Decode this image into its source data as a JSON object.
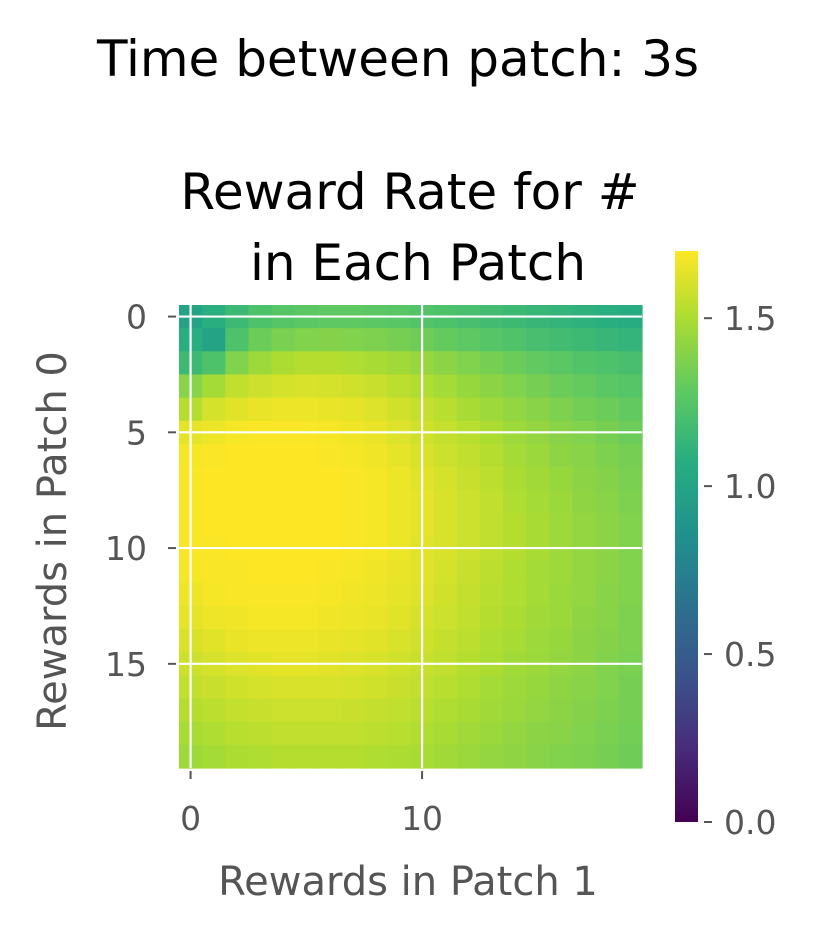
{
  "figure": {
    "suptitle": "Time between patch: 3s"
  },
  "chart_data": {
    "type": "heatmap",
    "title_lines": [
      "Reward Rate for #",
      "in Each Patch"
    ],
    "xlabel": "Rewards in Patch 1",
    "ylabel": "Rewards in Patch 0",
    "x_ticks": [
      0,
      10
    ],
    "y_ticks": [
      0,
      5,
      10,
      15
    ],
    "x_range": [
      0,
      19
    ],
    "y_range": [
      0,
      19
    ],
    "y_inverted": true,
    "grid": true,
    "colormap": "viridis",
    "colorbar": {
      "range": [
        0.0,
        1.7
      ],
      "ticks": [
        0.0,
        0.5,
        1.0,
        1.5
      ],
      "tick_labels": [
        "0.0",
        "0.5",
        "1.0",
        "1.5"
      ]
    },
    "values": [
      [
        1.0,
        1.08,
        1.16,
        1.22,
        1.25,
        1.27,
        1.28,
        1.28,
        1.27,
        1.26,
        1.24,
        1.22,
        1.2,
        1.18,
        1.16,
        1.14,
        1.12,
        1.1,
        1.08,
        1.06
      ],
      [
        1.08,
        1.0,
        1.22,
        1.32,
        1.36,
        1.38,
        1.39,
        1.38,
        1.37,
        1.35,
        1.33,
        1.3,
        1.28,
        1.25,
        1.23,
        1.2,
        1.18,
        1.16,
        1.14,
        1.12
      ],
      [
        1.16,
        1.22,
        1.38,
        1.46,
        1.5,
        1.52,
        1.52,
        1.51,
        1.49,
        1.47,
        1.44,
        1.41,
        1.38,
        1.35,
        1.32,
        1.29,
        1.27,
        1.24,
        1.22,
        1.2
      ],
      [
        1.4,
        1.48,
        1.55,
        1.58,
        1.6,
        1.61,
        1.6,
        1.59,
        1.57,
        1.54,
        1.51,
        1.48,
        1.44,
        1.41,
        1.38,
        1.35,
        1.32,
        1.3,
        1.27,
        1.25
      ],
      [
        1.52,
        1.6,
        1.63,
        1.65,
        1.66,
        1.66,
        1.65,
        1.64,
        1.62,
        1.59,
        1.56,
        1.53,
        1.49,
        1.46,
        1.43,
        1.4,
        1.37,
        1.34,
        1.32,
        1.29
      ],
      [
        1.64,
        1.66,
        1.68,
        1.69,
        1.69,
        1.69,
        1.68,
        1.67,
        1.65,
        1.62,
        1.59,
        1.56,
        1.53,
        1.5,
        1.46,
        1.43,
        1.4,
        1.38,
        1.35,
        1.32
      ],
      [
        1.68,
        1.69,
        1.7,
        1.7,
        1.7,
        1.7,
        1.69,
        1.68,
        1.67,
        1.64,
        1.61,
        1.58,
        1.55,
        1.52,
        1.48,
        1.45,
        1.42,
        1.4,
        1.37,
        1.35
      ],
      [
        1.69,
        1.7,
        1.7,
        1.7,
        1.7,
        1.7,
        1.7,
        1.69,
        1.68,
        1.66,
        1.63,
        1.6,
        1.57,
        1.54,
        1.5,
        1.47,
        1.44,
        1.41,
        1.39,
        1.36
      ],
      [
        1.69,
        1.7,
        1.7,
        1.7,
        1.7,
        1.7,
        1.7,
        1.69,
        1.68,
        1.66,
        1.64,
        1.61,
        1.58,
        1.55,
        1.51,
        1.48,
        1.45,
        1.42,
        1.4,
        1.37
      ],
      [
        1.69,
        1.7,
        1.7,
        1.7,
        1.7,
        1.7,
        1.7,
        1.69,
        1.68,
        1.66,
        1.64,
        1.61,
        1.58,
        1.55,
        1.52,
        1.49,
        1.46,
        1.43,
        1.41,
        1.38
      ],
      [
        1.69,
        1.69,
        1.7,
        1.7,
        1.7,
        1.7,
        1.7,
        1.69,
        1.68,
        1.66,
        1.63,
        1.61,
        1.58,
        1.55,
        1.52,
        1.49,
        1.46,
        1.43,
        1.41,
        1.38
      ],
      [
        1.68,
        1.69,
        1.69,
        1.7,
        1.7,
        1.7,
        1.69,
        1.68,
        1.67,
        1.65,
        1.63,
        1.6,
        1.57,
        1.54,
        1.51,
        1.48,
        1.46,
        1.43,
        1.41,
        1.38
      ],
      [
        1.66,
        1.68,
        1.69,
        1.69,
        1.69,
        1.69,
        1.68,
        1.67,
        1.66,
        1.64,
        1.62,
        1.59,
        1.56,
        1.53,
        1.51,
        1.48,
        1.45,
        1.43,
        1.4,
        1.38
      ],
      [
        1.64,
        1.66,
        1.67,
        1.68,
        1.68,
        1.68,
        1.67,
        1.66,
        1.65,
        1.63,
        1.6,
        1.58,
        1.55,
        1.52,
        1.5,
        1.47,
        1.45,
        1.42,
        1.4,
        1.37
      ],
      [
        1.61,
        1.63,
        1.65,
        1.66,
        1.66,
        1.66,
        1.65,
        1.64,
        1.63,
        1.61,
        1.59,
        1.56,
        1.54,
        1.51,
        1.49,
        1.46,
        1.44,
        1.41,
        1.39,
        1.37
      ],
      [
        1.58,
        1.6,
        1.62,
        1.63,
        1.64,
        1.64,
        1.63,
        1.62,
        1.61,
        1.59,
        1.57,
        1.55,
        1.52,
        1.5,
        1.47,
        1.45,
        1.43,
        1.41,
        1.38,
        1.36
      ],
      [
        1.55,
        1.57,
        1.59,
        1.6,
        1.61,
        1.61,
        1.61,
        1.6,
        1.59,
        1.57,
        1.55,
        1.53,
        1.51,
        1.48,
        1.46,
        1.44,
        1.42,
        1.4,
        1.38,
        1.35
      ],
      [
        1.52,
        1.54,
        1.56,
        1.57,
        1.58,
        1.58,
        1.58,
        1.57,
        1.56,
        1.55,
        1.53,
        1.51,
        1.49,
        1.47,
        1.45,
        1.43,
        1.41,
        1.39,
        1.37,
        1.35
      ],
      [
        1.49,
        1.51,
        1.53,
        1.54,
        1.55,
        1.55,
        1.55,
        1.55,
        1.54,
        1.53,
        1.51,
        1.49,
        1.47,
        1.45,
        1.43,
        1.41,
        1.4,
        1.38,
        1.36,
        1.34
      ],
      [
        1.46,
        1.48,
        1.5,
        1.51,
        1.52,
        1.52,
        1.52,
        1.52,
        1.51,
        1.5,
        1.49,
        1.47,
        1.45,
        1.43,
        1.42,
        1.4,
        1.38,
        1.37,
        1.35,
        1.33
      ]
    ]
  }
}
